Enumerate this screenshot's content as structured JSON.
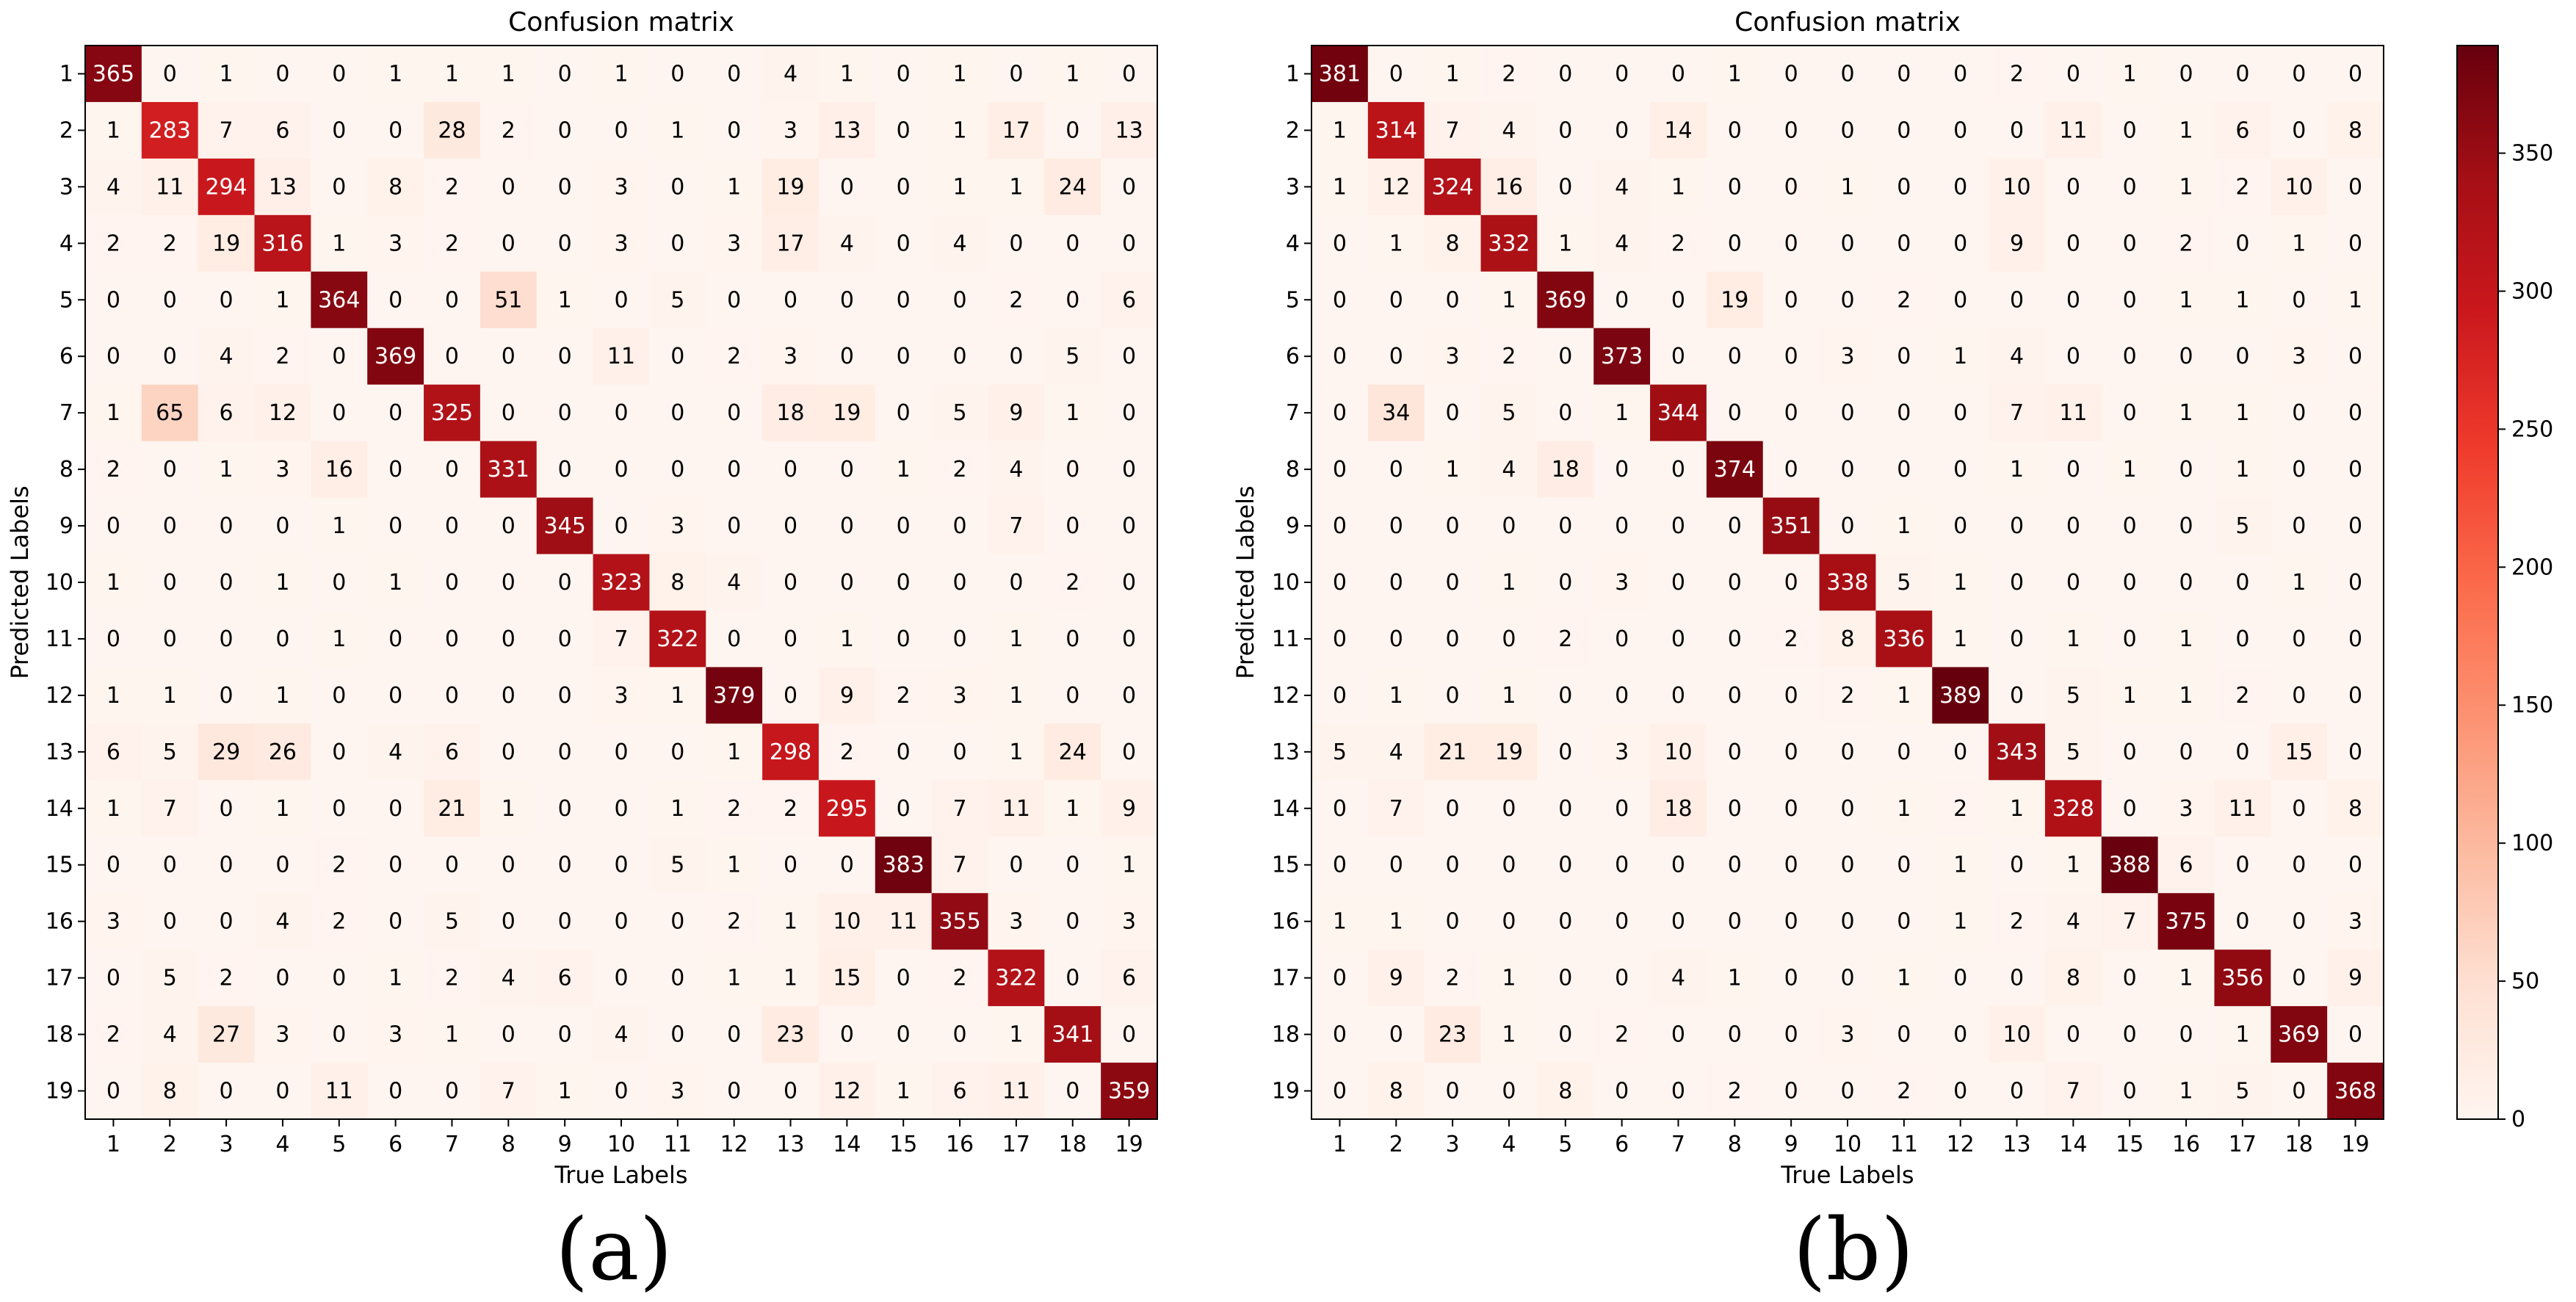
{
  "chart_data": [
    {
      "type": "heatmap",
      "title": "Confusion matrix",
      "xlabel": "True Labels",
      "ylabel": "Predicted Labels",
      "panel_label": "(a)",
      "categories": [
        "1",
        "2",
        "3",
        "4",
        "5",
        "6",
        "7",
        "8",
        "9",
        "10",
        "11",
        "12",
        "13",
        "14",
        "15",
        "16",
        "17",
        "18",
        "19"
      ],
      "values": [
        [
          365,
          0,
          1,
          0,
          0,
          1,
          1,
          1,
          0,
          1,
          0,
          0,
          4,
          1,
          0,
          1,
          0,
          1,
          0
        ],
        [
          1,
          283,
          7,
          6,
          0,
          0,
          28,
          2,
          0,
          0,
          1,
          0,
          3,
          13,
          0,
          1,
          17,
          0,
          13
        ],
        [
          4,
          11,
          294,
          13,
          0,
          8,
          2,
          0,
          0,
          3,
          0,
          1,
          19,
          0,
          0,
          1,
          1,
          24,
          0
        ],
        [
          2,
          2,
          19,
          316,
          1,
          3,
          2,
          0,
          0,
          3,
          0,
          3,
          17,
          4,
          0,
          4,
          0,
          0,
          0
        ],
        [
          0,
          0,
          0,
          1,
          364,
          0,
          0,
          51,
          1,
          0,
          5,
          0,
          0,
          0,
          0,
          0,
          2,
          0,
          6
        ],
        [
          0,
          0,
          4,
          2,
          0,
          369,
          0,
          0,
          0,
          11,
          0,
          2,
          3,
          0,
          0,
          0,
          0,
          5,
          0
        ],
        [
          1,
          65,
          6,
          12,
          0,
          0,
          325,
          0,
          0,
          0,
          0,
          0,
          18,
          19,
          0,
          5,
          9,
          1,
          0
        ],
        [
          2,
          0,
          1,
          3,
          16,
          0,
          0,
          331,
          0,
          0,
          0,
          0,
          0,
          0,
          1,
          2,
          4,
          0,
          0
        ],
        [
          0,
          0,
          0,
          0,
          1,
          0,
          0,
          0,
          345,
          0,
          3,
          0,
          0,
          0,
          0,
          0,
          7,
          0,
          0
        ],
        [
          1,
          0,
          0,
          1,
          0,
          1,
          0,
          0,
          0,
          323,
          8,
          4,
          0,
          0,
          0,
          0,
          0,
          2,
          0
        ],
        [
          0,
          0,
          0,
          0,
          1,
          0,
          0,
          0,
          0,
          7,
          322,
          0,
          0,
          1,
          0,
          0,
          1,
          0,
          0
        ],
        [
          1,
          1,
          0,
          1,
          0,
          0,
          0,
          0,
          0,
          3,
          1,
          379,
          0,
          9,
          2,
          3,
          1,
          0,
          0
        ],
        [
          6,
          5,
          29,
          26,
          0,
          4,
          6,
          0,
          0,
          0,
          0,
          1,
          298,
          2,
          0,
          0,
          1,
          24,
          0
        ],
        [
          1,
          7,
          0,
          1,
          0,
          0,
          21,
          1,
          0,
          0,
          1,
          2,
          2,
          295,
          0,
          7,
          11,
          1,
          9
        ],
        [
          0,
          0,
          0,
          0,
          2,
          0,
          0,
          0,
          0,
          0,
          5,
          1,
          0,
          0,
          383,
          7,
          0,
          0,
          1
        ],
        [
          3,
          0,
          0,
          4,
          2,
          0,
          5,
          0,
          0,
          0,
          0,
          2,
          1,
          10,
          11,
          355,
          3,
          0,
          3
        ],
        [
          0,
          5,
          2,
          0,
          0,
          1,
          2,
          4,
          6,
          0,
          0,
          1,
          1,
          15,
          0,
          2,
          322,
          0,
          6
        ],
        [
          2,
          4,
          27,
          3,
          0,
          3,
          1,
          0,
          0,
          4,
          0,
          0,
          23,
          0,
          0,
          0,
          1,
          341,
          0
        ],
        [
          0,
          8,
          0,
          0,
          11,
          0,
          0,
          7,
          1,
          0,
          3,
          0,
          0,
          12,
          1,
          6,
          11,
          0,
          359
        ]
      ]
    },
    {
      "type": "heatmap",
      "title": "Confusion matrix",
      "xlabel": "True Labels",
      "ylabel": "Predicted Labels",
      "panel_label": "(b)",
      "categories": [
        "1",
        "2",
        "3",
        "4",
        "5",
        "6",
        "7",
        "8",
        "9",
        "10",
        "11",
        "12",
        "13",
        "14",
        "15",
        "16",
        "17",
        "18",
        "19"
      ],
      "values": [
        [
          381,
          0,
          1,
          2,
          0,
          0,
          0,
          1,
          0,
          0,
          0,
          0,
          2,
          0,
          1,
          0,
          0,
          0,
          0
        ],
        [
          1,
          314,
          7,
          4,
          0,
          0,
          14,
          0,
          0,
          0,
          0,
          0,
          0,
          11,
          0,
          1,
          6,
          0,
          8
        ],
        [
          1,
          12,
          324,
          16,
          0,
          4,
          1,
          0,
          0,
          1,
          0,
          0,
          10,
          0,
          0,
          1,
          2,
          10,
          0
        ],
        [
          0,
          1,
          8,
          332,
          1,
          4,
          2,
          0,
          0,
          0,
          0,
          0,
          9,
          0,
          0,
          2,
          0,
          1,
          0
        ],
        [
          0,
          0,
          0,
          1,
          369,
          0,
          0,
          19,
          0,
          0,
          2,
          0,
          0,
          0,
          0,
          1,
          1,
          0,
          1
        ],
        [
          0,
          0,
          3,
          2,
          0,
          373,
          0,
          0,
          0,
          3,
          0,
          1,
          4,
          0,
          0,
          0,
          0,
          3,
          0
        ],
        [
          0,
          34,
          0,
          5,
          0,
          1,
          344,
          0,
          0,
          0,
          0,
          0,
          7,
          11,
          0,
          1,
          1,
          0,
          0
        ],
        [
          0,
          0,
          1,
          4,
          18,
          0,
          0,
          374,
          0,
          0,
          0,
          0,
          1,
          0,
          1,
          0,
          1,
          0,
          0
        ],
        [
          0,
          0,
          0,
          0,
          0,
          0,
          0,
          0,
          351,
          0,
          1,
          0,
          0,
          0,
          0,
          0,
          5,
          0,
          0
        ],
        [
          0,
          0,
          0,
          1,
          0,
          3,
          0,
          0,
          0,
          338,
          5,
          1,
          0,
          0,
          0,
          0,
          0,
          1,
          0
        ],
        [
          0,
          0,
          0,
          0,
          2,
          0,
          0,
          0,
          2,
          8,
          336,
          1,
          0,
          1,
          0,
          1,
          0,
          0,
          0
        ],
        [
          0,
          1,
          0,
          1,
          0,
          0,
          0,
          0,
          0,
          2,
          1,
          389,
          0,
          5,
          1,
          1,
          2,
          0,
          0
        ],
        [
          5,
          4,
          21,
          19,
          0,
          3,
          10,
          0,
          0,
          0,
          0,
          0,
          343,
          5,
          0,
          0,
          0,
          15,
          0
        ],
        [
          0,
          7,
          0,
          0,
          0,
          0,
          18,
          0,
          0,
          0,
          1,
          2,
          1,
          328,
          0,
          3,
          11,
          0,
          8
        ],
        [
          0,
          0,
          0,
          0,
          0,
          0,
          0,
          0,
          0,
          0,
          0,
          1,
          0,
          1,
          388,
          6,
          0,
          0,
          0
        ],
        [
          1,
          1,
          0,
          0,
          0,
          0,
          0,
          0,
          0,
          0,
          0,
          1,
          2,
          4,
          7,
          375,
          0,
          0,
          3
        ],
        [
          0,
          9,
          2,
          1,
          0,
          0,
          4,
          1,
          0,
          0,
          1,
          0,
          0,
          8,
          0,
          1,
          356,
          0,
          9
        ],
        [
          0,
          0,
          23,
          1,
          0,
          2,
          0,
          0,
          0,
          3,
          0,
          0,
          10,
          0,
          0,
          0,
          1,
          369,
          0
        ],
        [
          0,
          8,
          0,
          0,
          8,
          0,
          0,
          2,
          0,
          0,
          2,
          0,
          0,
          7,
          0,
          1,
          5,
          0,
          368
        ]
      ]
    }
  ],
  "colorbar": {
    "ticks": [
      0,
      50,
      100,
      150,
      200,
      250,
      300,
      350
    ],
    "min": 0,
    "max": 389,
    "colormap": "Reds",
    "colors": [
      "#fff5f0",
      "#fee0d2",
      "#fcbba1",
      "#fc9272",
      "#fb6a4a",
      "#ef3b2c",
      "#cb181d",
      "#a50f15",
      "#67000d"
    ]
  }
}
